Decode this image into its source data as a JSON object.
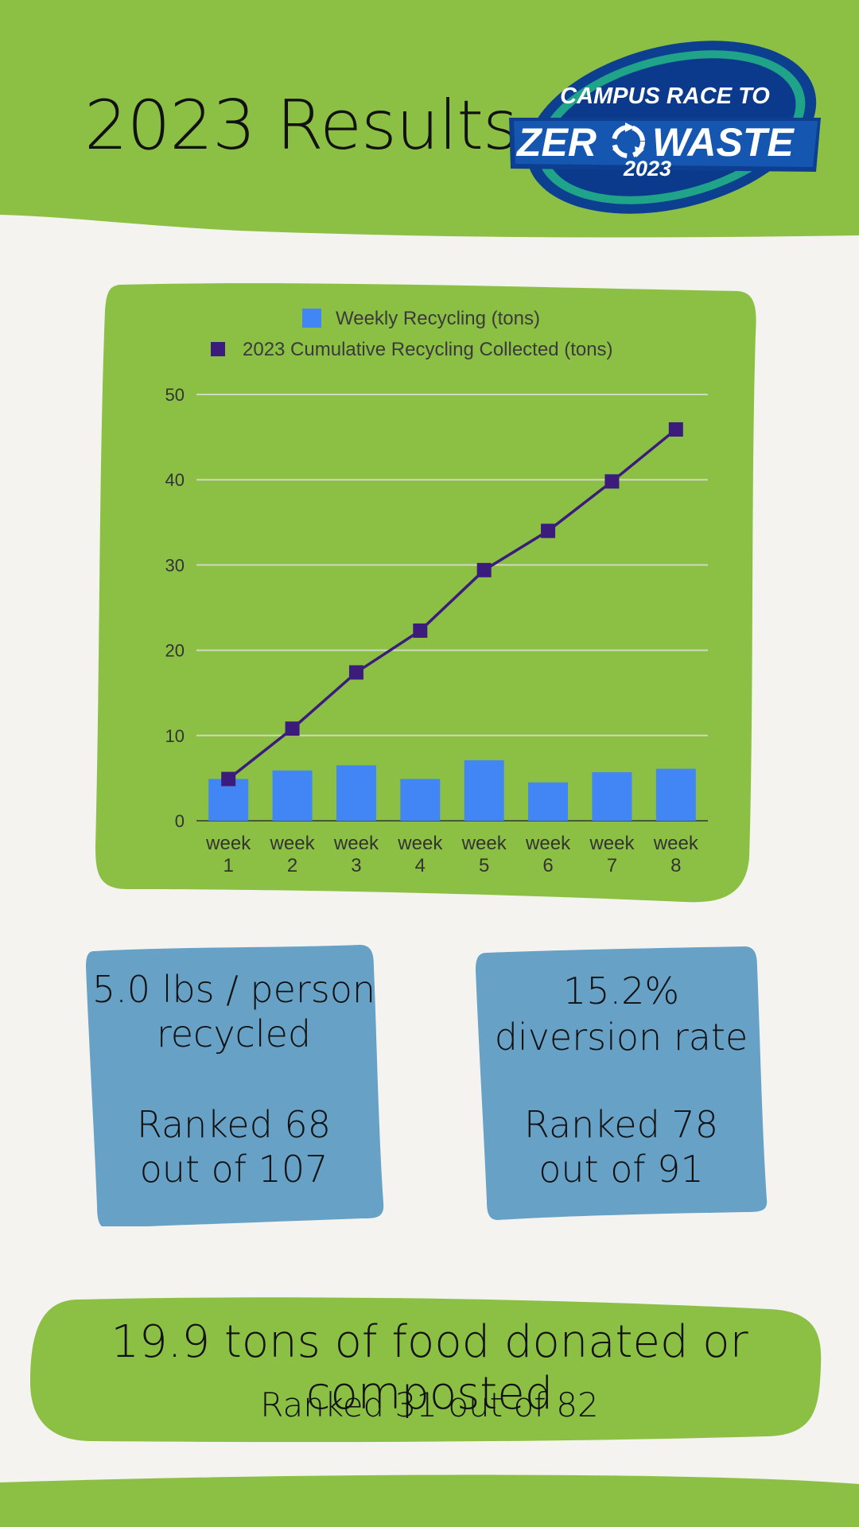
{
  "header": {
    "title": "2023 Results",
    "logo_line1": "CAMPUS RACE TO",
    "logo_line2a": "ZER",
    "logo_line2b": "WASTE",
    "logo_year": "2023"
  },
  "colors": {
    "green": "#8cc045",
    "cream": "#f5f3f0",
    "bar_blue": "#4285f4",
    "line_purple": "#3b1c7c",
    "card_blue": "#67a1c6",
    "logo_navy": "#0d3f91",
    "logo_teal": "#1fa489"
  },
  "chart_data": {
    "type": "bar",
    "categories": [
      "week 1",
      "week 2",
      "week 3",
      "week 4",
      "week 5",
      "week 6",
      "week 7",
      "week 8"
    ],
    "series": [
      {
        "name": "Weekly Recycling (tons)",
        "type": "bar",
        "color": "#4285f4",
        "values": [
          4.9,
          5.9,
          6.5,
          4.9,
          7.1,
          4.5,
          5.7,
          6.1
        ]
      },
      {
        "name": "2023 Cumulative Recycling Collected (tons)",
        "type": "line",
        "color": "#3b1c7c",
        "values": [
          4.9,
          10.8,
          17.4,
          22.3,
          29.4,
          34.0,
          39.8,
          45.9
        ]
      }
    ],
    "ylim": [
      0,
      50
    ],
    "yticks": [
      0,
      10,
      20,
      30,
      40,
      50
    ],
    "grid": true,
    "legend_position": "top-center"
  },
  "stats": [
    {
      "line1": "5.0 lbs / person",
      "line2": "recycled",
      "line3": "Ranked 68",
      "line4": "out of 107"
    },
    {
      "line1": "15.2%",
      "line2": "diversion rate",
      "line3": "Ranked 78",
      "line4": "out of 91"
    }
  ],
  "food": {
    "main": "19.9 tons of food donated or composted",
    "rank": "Ranked 31 out of 82"
  }
}
